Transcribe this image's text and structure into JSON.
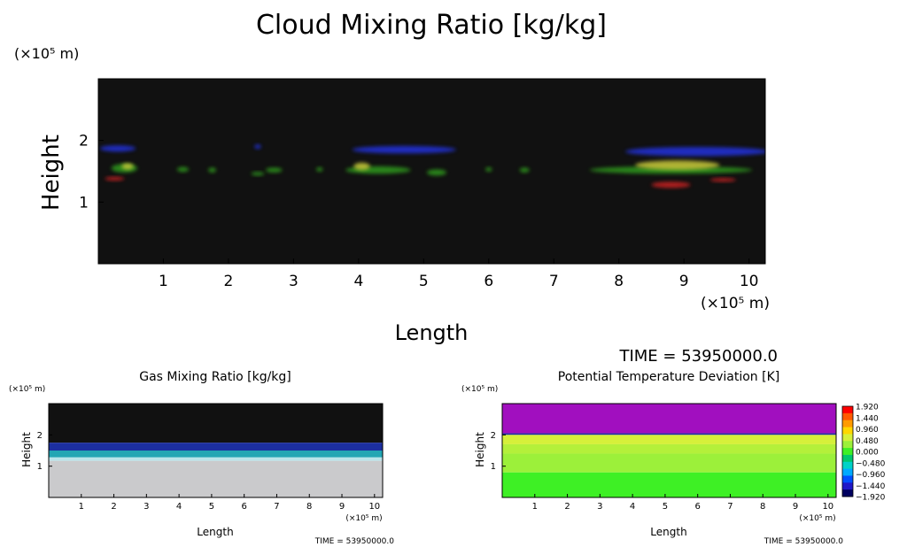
{
  "chart_data": [
    {
      "type": "heatmap",
      "title": "Cloud Mixing Ratio [kg/kg]",
      "xlabel": "Length",
      "ylabel": "Height",
      "x_unit": "(×10⁵ m)",
      "y_unit": "(×10⁵ m)",
      "xlim": [
        0,
        10.25
      ],
      "ylim": [
        0,
        3
      ],
      "x_ticks": [
        1,
        2,
        3,
        4,
        5,
        6,
        7,
        8,
        9,
        10
      ],
      "y_ticks": [
        1,
        2
      ],
      "background_color": "#111111",
      "time_label": "TIME = 53950000.0",
      "blobs": [
        {
          "x": 0.3,
          "y": 1.87,
          "w": 0.55,
          "h": 0.1,
          "color": "#2233dd"
        },
        {
          "x": 4.7,
          "y": 1.85,
          "w": 1.6,
          "h": 0.12,
          "color": "#2233dd"
        },
        {
          "x": 2.45,
          "y": 1.9,
          "w": 0.1,
          "h": 0.07,
          "color": "#2233dd"
        },
        {
          "x": 9.2,
          "y": 1.82,
          "w": 2.2,
          "h": 0.15,
          "color": "#2233dd"
        },
        {
          "x": 0.4,
          "y": 1.55,
          "w": 0.4,
          "h": 0.14,
          "color": "#2e9a1e"
        },
        {
          "x": 0.45,
          "y": 1.58,
          "w": 0.18,
          "h": 0.1,
          "color": "#c9c93a"
        },
        {
          "x": 0.25,
          "y": 1.38,
          "w": 0.3,
          "h": 0.06,
          "color": "#cc2222"
        },
        {
          "x": 1.3,
          "y": 1.53,
          "w": 0.18,
          "h": 0.08,
          "color": "#2e9a1e"
        },
        {
          "x": 1.75,
          "y": 1.52,
          "w": 0.12,
          "h": 0.08,
          "color": "#2e9a1e"
        },
        {
          "x": 2.45,
          "y": 1.46,
          "w": 0.2,
          "h": 0.06,
          "color": "#2e9a1e"
        },
        {
          "x": 2.7,
          "y": 1.52,
          "w": 0.25,
          "h": 0.08,
          "color": "#2e9a1e"
        },
        {
          "x": 3.4,
          "y": 1.53,
          "w": 0.1,
          "h": 0.07,
          "color": "#2e9a1e"
        },
        {
          "x": 4.3,
          "y": 1.52,
          "w": 1.0,
          "h": 0.12,
          "color": "#2e9a1e"
        },
        {
          "x": 4.05,
          "y": 1.58,
          "w": 0.25,
          "h": 0.12,
          "color": "#c9c93a"
        },
        {
          "x": 5.2,
          "y": 1.48,
          "w": 0.3,
          "h": 0.1,
          "color": "#2e9a1e"
        },
        {
          "x": 6.0,
          "y": 1.53,
          "w": 0.1,
          "h": 0.07,
          "color": "#2e9a1e"
        },
        {
          "x": 6.55,
          "y": 1.52,
          "w": 0.15,
          "h": 0.08,
          "color": "#2e9a1e"
        },
        {
          "x": 8.8,
          "y": 1.52,
          "w": 2.5,
          "h": 0.12,
          "color": "#2e9a1e"
        },
        {
          "x": 8.9,
          "y": 1.6,
          "w": 1.3,
          "h": 0.15,
          "color": "#c9c93a"
        },
        {
          "x": 8.8,
          "y": 1.28,
          "w": 0.6,
          "h": 0.1,
          "color": "#cc2222"
        },
        {
          "x": 9.6,
          "y": 1.36,
          "w": 0.4,
          "h": 0.06,
          "color": "#cc2222"
        }
      ]
    },
    {
      "type": "heatmap",
      "title": "Gas Mixing Ratio [kg/kg]",
      "xlabel": "Length",
      "ylabel": "Height",
      "x_unit": "(×10⁵ m)",
      "y_unit": "(×10⁵ m)",
      "xlim": [
        0,
        10.25
      ],
      "ylim": [
        0,
        3
      ],
      "x_ticks": [
        1,
        2,
        3,
        4,
        5,
        6,
        7,
        8,
        9,
        10
      ],
      "y_ticks": [
        1,
        2
      ],
      "time_label": "TIME = 53950000.0",
      "bands": [
        {
          "from": 1.75,
          "to": 3.0,
          "color": "#111111"
        },
        {
          "from": 1.5,
          "to": 1.75,
          "color": "#1c2fa0"
        },
        {
          "from": 1.28,
          "to": 1.5,
          "color": "#22a6b4"
        },
        {
          "from": 1.17,
          "to": 1.28,
          "color": "#b8e4ea"
        },
        {
          "from": 0.0,
          "to": 1.17,
          "color": "#cacacc"
        }
      ]
    },
    {
      "type": "heatmap",
      "title": "Potential Temperature Deviation [K]",
      "xlabel": "Length",
      "ylabel": "Height",
      "x_unit": "(×10⁵ m)",
      "y_unit": "(×10⁵ m)",
      "xlim": [
        0,
        10.25
      ],
      "ylim": [
        0,
        3
      ],
      "x_ticks": [
        1,
        2,
        3,
        4,
        5,
        6,
        7,
        8,
        9,
        10
      ],
      "y_ticks": [
        1,
        2
      ],
      "time_label": "TIME = 53950000.0",
      "bands": [
        {
          "from": 2.05,
          "to": 3.0,
          "color": "#a10fbf"
        },
        {
          "from": 2.0,
          "to": 2.05,
          "color": "#1c2fa0"
        },
        {
          "from": 1.7,
          "to": 2.0,
          "color": "#d6f03a"
        },
        {
          "from": 1.4,
          "to": 1.7,
          "color": "#b4f03a"
        },
        {
          "from": 0.8,
          "to": 1.4,
          "color": "#9cf03a"
        },
        {
          "from": 0.0,
          "to": 0.8,
          "color": "#3ef025"
        }
      ],
      "colorbar": {
        "labels": [
          "1.920",
          "1.440",
          "0.960",
          "0.480",
          "0.000",
          "−0.480",
          "−0.960",
          "−1.440",
          "−1.920"
        ],
        "colors": [
          "#ff0000",
          "#ff5a00",
          "#ff9b00",
          "#ffd700",
          "#d6f03a",
          "#9cf03a",
          "#3ef025",
          "#00c86e",
          "#00d2c8",
          "#00aaff",
          "#0050ff",
          "#2018c8",
          "#000060"
        ]
      }
    }
  ]
}
